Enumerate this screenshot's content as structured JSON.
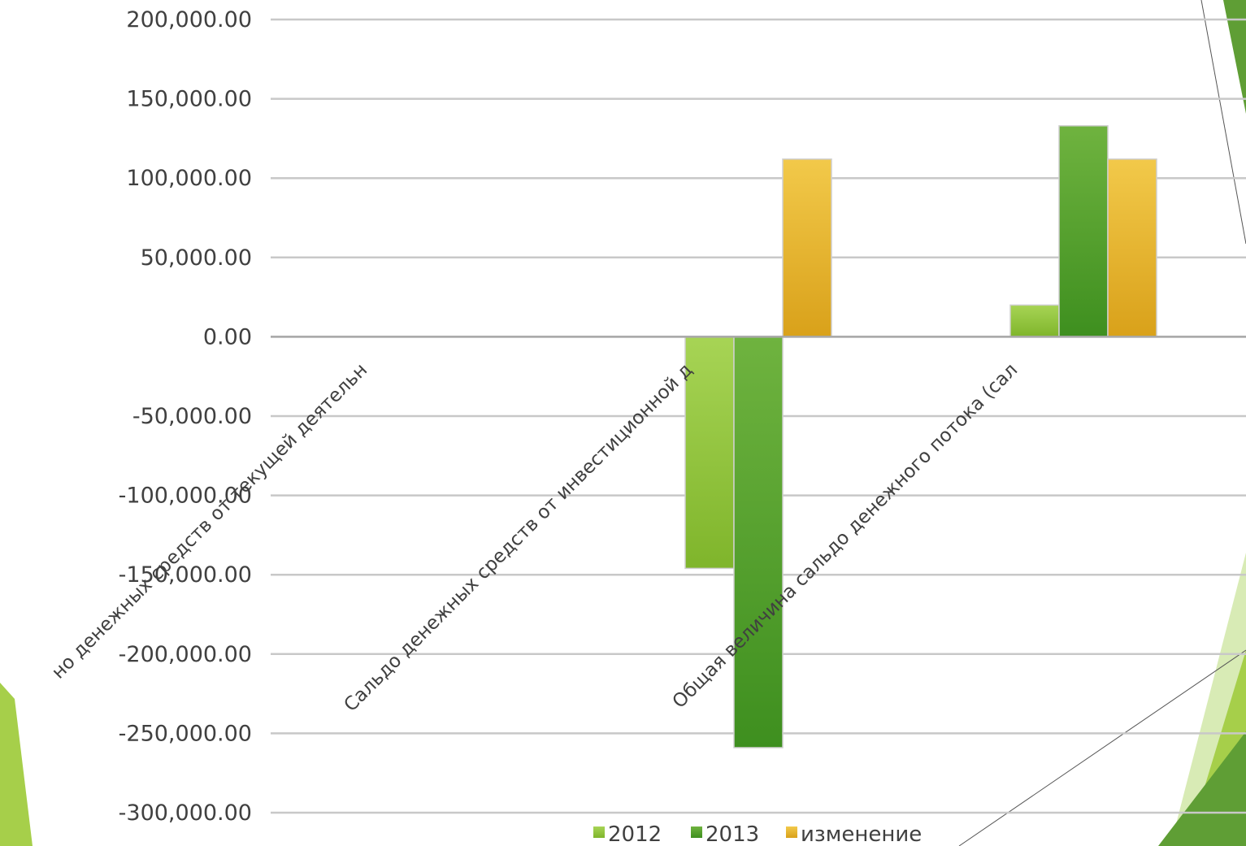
{
  "chart_data": {
    "type": "bar",
    "title": "",
    "xlabel": "",
    "ylabel": "",
    "ylim": [
      -300000,
      200000
    ],
    "y_ticks": [
      "200,000.00",
      "150,000.00",
      "100,000.00",
      "50,000.00",
      "0.00",
      "-50,000.00",
      "-100,000.00",
      "-150,000.00",
      "-200,000.00",
      "-250,000.00",
      "-300,000.00"
    ],
    "y_tick_values": [
      200000,
      150000,
      100000,
      50000,
      0,
      -50000,
      -100000,
      -150000,
      -200000,
      -250000,
      -300000
    ],
    "categories": [
      "но денежных средств от текущей деятельн",
      "Сальдо денежных средств от инвестиционной д",
      "Общая величина сальдо денежного потока (сал"
    ],
    "series": [
      {
        "name": "2012",
        "color": "#8cc63f",
        "values": [
          0,
          -146000,
          20000
        ]
      },
      {
        "name": "2013",
        "color": "#4e9a2a",
        "values": [
          0,
          -259000,
          133000
        ]
      },
      {
        "name": "изменение",
        "color": "#e8b830",
        "values": [
          0,
          112000,
          112000
        ]
      }
    ],
    "grid": true,
    "legend_position": "bottom"
  },
  "decor": {
    "accent_light": "#c5e08a",
    "accent_mid": "#a6cf4a",
    "accent_dark": "#5f9e35"
  }
}
